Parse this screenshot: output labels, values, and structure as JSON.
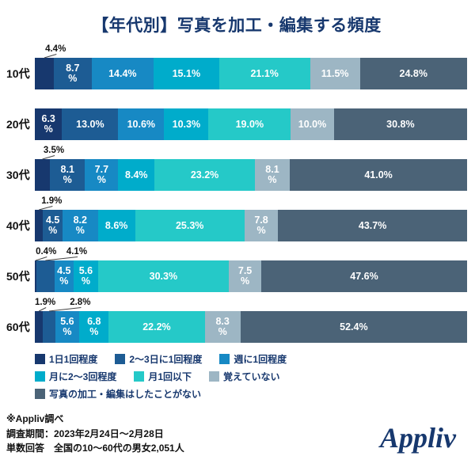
{
  "chart_data": {
    "type": "bar",
    "orientation": "horizontal-stacked",
    "unit": "%",
    "title": "【年代別】写真を加工・編集する頻度",
    "categories": [
      "10代",
      "20代",
      "30代",
      "40代",
      "50代",
      "60代"
    ],
    "series": [
      {
        "name": "1日1回程度",
        "color": "#17386e",
        "values": [
          4.4,
          6.3,
          3.5,
          1.9,
          0.4,
          1.9
        ]
      },
      {
        "name": "2〜3日に1回程度",
        "color": "#1d5c94",
        "values": [
          8.7,
          13.0,
          8.1,
          4.5,
          4.1,
          2.8
        ]
      },
      {
        "name": "週に1回程度",
        "color": "#1789c4",
        "values": [
          14.4,
          10.6,
          7.7,
          8.2,
          4.5,
          5.6
        ]
      },
      {
        "name": "月に2〜3回程度",
        "color": "#00accb",
        "values": [
          15.1,
          10.3,
          8.4,
          8.6,
          5.6,
          6.8
        ]
      },
      {
        "name": "月1回以下",
        "color": "#25c9c8",
        "values": [
          21.1,
          19.0,
          23.2,
          25.3,
          30.3,
          22.2
        ]
      },
      {
        "name": "覚えていない",
        "color": "#9db6c4",
        "values": [
          11.5,
          10.0,
          8.1,
          7.8,
          7.5,
          8.3
        ]
      },
      {
        "name": "写真の加工・編集はしたことがない",
        "color": "#4b6377",
        "values": [
          24.8,
          30.8,
          41.0,
          43.7,
          47.6,
          52.4
        ]
      }
    ],
    "label_styles": [
      [
        "callout",
        "stacked",
        "inline",
        "inline",
        "inline",
        "inline",
        "inline"
      ],
      [
        "stacked",
        "inline",
        "inline",
        "inline",
        "inline",
        "inline",
        "inline"
      ],
      [
        "callout",
        "stacked",
        "stacked",
        "inline",
        "inline",
        "stacked",
        "inline"
      ],
      [
        "callout",
        "stacked",
        "stacked",
        "inline",
        "inline",
        "stacked",
        "inline"
      ],
      [
        "callout",
        "callout",
        "stacked",
        "stacked",
        "inline",
        "stacked",
        "inline"
      ],
      [
        "callout",
        "callout",
        "stacked",
        "stacked",
        "inline",
        "stacked",
        "inline"
      ]
    ],
    "callout_label_x": [
      {
        "0": 2.4
      },
      {},
      {
        "0": 2.0
      },
      {
        "0": 1.5
      },
      {
        "0": 0.2,
        "1": 7.3
      },
      {
        "0": 0.0,
        "1": 8.1
      }
    ],
    "legend_position": "bottom-left",
    "xlim": [
      0,
      100
    ],
    "grid": false
  },
  "footer": {
    "note1": "※Appliv調べ",
    "note2": "調査期間：2023年2月24日〜2月28日",
    "note3": "単数回答　全国の10〜60代の男女2,051人",
    "logo": "Appliv"
  }
}
